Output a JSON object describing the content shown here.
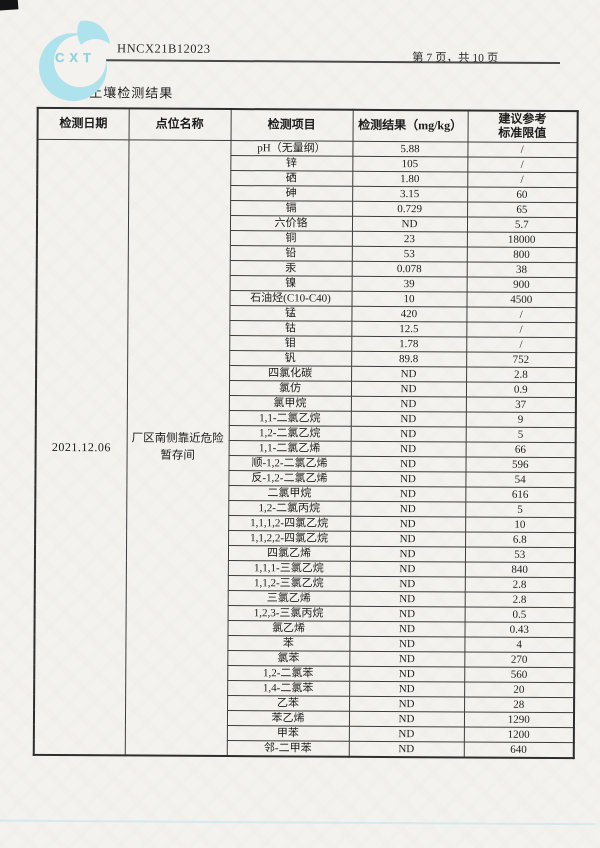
{
  "header": {
    "logo_text": "CXT",
    "report_no": "HNCX21B12023",
    "page_info": "第 7 页，共 10 页",
    "section_title": "2、土壤检测结果"
  },
  "colors": {
    "logo_accent": "#aee2ec",
    "paper": "#f4f2ee",
    "scan_line_blue": "#cfe7ee",
    "table_border": "#3d3d3d"
  },
  "table": {
    "headers": {
      "date": "检测日期",
      "location": "点位名称",
      "item": "检测项目",
      "result": "检测结果（mg/kg）",
      "limit_line1": "建议参考",
      "limit_line2": "标准限值"
    },
    "date": "2021.12.06",
    "location": "厂区南侧靠近危险暂存间",
    "rows": [
      {
        "item": "pH（无量纲）",
        "result": "5.88",
        "limit": "/"
      },
      {
        "item": "锌",
        "result": "105",
        "limit": "/"
      },
      {
        "item": "硒",
        "result": "1.80",
        "limit": "/"
      },
      {
        "item": "砷",
        "result": "3.15",
        "limit": "60"
      },
      {
        "item": "镉",
        "result": "0.729",
        "limit": "65"
      },
      {
        "item": "六价铬",
        "result": "ND",
        "limit": "5.7"
      },
      {
        "item": "铜",
        "result": "23",
        "limit": "18000"
      },
      {
        "item": "铅",
        "result": "53",
        "limit": "800"
      },
      {
        "item": "汞",
        "result": "0.078",
        "limit": "38"
      },
      {
        "item": "镍",
        "result": "39",
        "limit": "900"
      },
      {
        "item": "石油烃(C10-C40)",
        "result": "10",
        "limit": "4500"
      },
      {
        "item": "锰",
        "result": "420",
        "limit": "/"
      },
      {
        "item": "钴",
        "result": "12.5",
        "limit": "/"
      },
      {
        "item": "钼",
        "result": "1.78",
        "limit": "/"
      },
      {
        "item": "钒",
        "result": "89.8",
        "limit": "752"
      },
      {
        "item": "四氯化碳",
        "result": "ND",
        "limit": "2.8"
      },
      {
        "item": "氯仿",
        "result": "ND",
        "limit": "0.9"
      },
      {
        "item": "氯甲烷",
        "result": "ND",
        "limit": "37"
      },
      {
        "item": "1,1-二氯乙烷",
        "result": "ND",
        "limit": "9"
      },
      {
        "item": "1,2-二氯乙烷",
        "result": "ND",
        "limit": "5"
      },
      {
        "item": "1,1-二氯乙烯",
        "result": "ND",
        "limit": "66"
      },
      {
        "item": "顺-1,2-二氯乙烯",
        "result": "ND",
        "limit": "596"
      },
      {
        "item": "反-1,2-二氯乙烯",
        "result": "ND",
        "limit": "54"
      },
      {
        "item": "二氯甲烷",
        "result": "ND",
        "limit": "616"
      },
      {
        "item": "1,2-二氯丙烷",
        "result": "ND",
        "limit": "5"
      },
      {
        "item": "1,1,1,2-四氯乙烷",
        "result": "ND",
        "limit": "10"
      },
      {
        "item": "1,1,2,2-四氯乙烷",
        "result": "ND",
        "limit": "6.8"
      },
      {
        "item": "四氯乙烯",
        "result": "ND",
        "limit": "53"
      },
      {
        "item": "1,1,1-三氯乙烷",
        "result": "ND",
        "limit": "840"
      },
      {
        "item": "1,1,2-三氯乙烷",
        "result": "ND",
        "limit": "2.8"
      },
      {
        "item": "三氯乙烯",
        "result": "ND",
        "limit": "2.8"
      },
      {
        "item": "1,2,3-三氯丙烷",
        "result": "ND",
        "limit": "0.5"
      },
      {
        "item": "氯乙烯",
        "result": "ND",
        "limit": "0.43"
      },
      {
        "item": "苯",
        "result": "ND",
        "limit": "4"
      },
      {
        "item": "氯苯",
        "result": "ND",
        "limit": "270"
      },
      {
        "item": "1,2-二氯苯",
        "result": "ND",
        "limit": "560"
      },
      {
        "item": "1,4-二氯苯",
        "result": "ND",
        "limit": "20"
      },
      {
        "item": "乙苯",
        "result": "ND",
        "limit": "28"
      },
      {
        "item": "苯乙烯",
        "result": "ND",
        "limit": "1290"
      },
      {
        "item": "甲苯",
        "result": "ND",
        "limit": "1200"
      },
      {
        "item": "邻-二甲苯",
        "result": "ND",
        "limit": "640"
      }
    ]
  }
}
